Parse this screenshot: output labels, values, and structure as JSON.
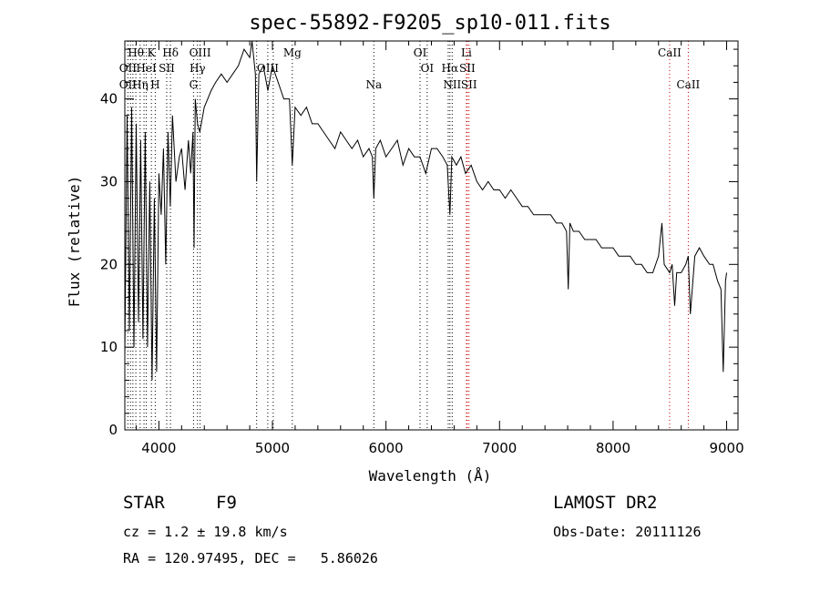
{
  "chart_data": {
    "type": "line",
    "title": "spec-55892-F9205_sp10-011.fits",
    "xlabel": "Wavelength (Å)",
    "ylabel": "Flux (relative)",
    "xlim": [
      3700,
      9100
    ],
    "ylim": [
      0,
      47
    ],
    "xticks": [
      "4000",
      "5000",
      "6000",
      "7000",
      "8000",
      "9000"
    ],
    "yticks": [
      "0",
      "10",
      "20",
      "30",
      "40"
    ],
    "series": [
      {
        "x": [
          3700,
          3720,
          3740,
          3760,
          3780,
          3800,
          3820,
          3840,
          3860,
          3880,
          3900,
          3920,
          3940,
          3960,
          3980,
          4000,
          4020,
          4040,
          4060,
          4080,
          4100,
          4120,
          4150,
          4180,
          4200,
          4230,
          4260,
          4280,
          4300,
          4310,
          4320,
          4340,
          4360,
          4400,
          4430,
          4460,
          4500,
          4550,
          4600,
          4650,
          4700,
          4750,
          4800,
          4820,
          4850,
          4861,
          4880,
          4920,
          4960,
          5000,
          5050,
          5100,
          5150,
          5175,
          5200,
          5250,
          5300,
          5350,
          5400,
          5450,
          5500,
          5550,
          5600,
          5650,
          5700,
          5750,
          5800,
          5850,
          5880,
          5893,
          5910,
          5950,
          6000,
          6050,
          6100,
          6150,
          6200,
          6250,
          6300,
          6350,
          6400,
          6450,
          6500,
          6540,
          6563,
          6580,
          6620,
          6660,
          6700,
          6750,
          6800,
          6850,
          6900,
          6950,
          7000,
          7050,
          7100,
          7150,
          7200,
          7250,
          7300,
          7350,
          7400,
          7450,
          7500,
          7550,
          7590,
          7605,
          7620,
          7650,
          7700,
          7750,
          7800,
          7850,
          7900,
          7950,
          8000,
          8050,
          8100,
          8150,
          8200,
          8250,
          8300,
          8350,
          8400,
          8430,
          8450,
          8498,
          8520,
          8542,
          8560,
          8600,
          8640,
          8662,
          8680,
          8720,
          8760,
          8800,
          8850,
          8880,
          8900,
          8920,
          8950,
          8970,
          8990,
          9000
        ],
        "y": [
          9,
          38,
          12,
          39,
          10,
          37,
          13,
          35,
          11,
          36,
          10,
          30,
          6,
          28,
          7,
          31,
          26,
          34,
          20,
          36,
          27,
          38,
          30,
          33,
          34,
          29,
          35,
          31,
          36,
          22,
          40,
          37,
          36,
          39,
          40,
          41,
          42,
          43,
          42,
          43,
          44,
          46,
          45,
          47,
          43,
          30,
          43,
          44,
          41,
          44,
          42,
          40,
          40,
          32,
          39,
          38,
          39,
          37,
          37,
          36,
          35,
          34,
          36,
          35,
          34,
          35,
          33,
          34,
          33,
          28,
          34,
          35,
          33,
          34,
          35,
          32,
          34,
          33,
          33,
          31,
          34,
          34,
          33,
          32,
          26,
          33,
          32,
          33,
          31,
          32,
          30,
          29,
          30,
          29,
          29,
          28,
          29,
          28,
          27,
          27,
          26,
          26,
          26,
          26,
          25,
          25,
          24,
          17,
          25,
          24,
          24,
          23,
          23,
          23,
          22,
          22,
          22,
          21,
          21,
          21,
          20,
          20,
          19,
          19,
          21,
          25,
          20,
          19,
          20,
          15,
          19,
          19,
          20,
          21,
          14,
          21,
          22,
          21,
          20,
          20,
          19,
          18,
          17,
          7,
          18,
          19
        ]
      }
    ],
    "line_labels": [
      {
        "text": "Hθ",
        "x": 3797,
        "row": 1,
        "color": "#000000"
      },
      {
        "text": "K",
        "x": 3934,
        "row": 1,
        "color": "#000000"
      },
      {
        "text": "Hδ",
        "x": 4102,
        "row": 1,
        "color": "#000000"
      },
      {
        "text": "OIII",
        "x": 4363,
        "row": 1,
        "color": "#000000"
      },
      {
        "text": "Mg",
        "x": 5175,
        "row": 1,
        "color": "#000000"
      },
      {
        "text": "OI",
        "x": 6300,
        "row": 1,
        "color": "#000000"
      },
      {
        "text": "Li",
        "x": 6708,
        "row": 1,
        "color": "#cc0000"
      },
      {
        "text": "CaII",
        "x": 8498,
        "row": 1,
        "color": "#cc0000"
      },
      {
        "text": "OII",
        "x": 3727,
        "row": 2,
        "color": "#000000"
      },
      {
        "text": "HeI",
        "x": 3889,
        "row": 2,
        "color": "#000000"
      },
      {
        "text": "SII",
        "x": 4069,
        "row": 2,
        "color": "#000000"
      },
      {
        "text": "Hγ",
        "x": 4340,
        "row": 2,
        "color": "#000000"
      },
      {
        "text": "OIII",
        "x": 4959,
        "row": 2,
        "color": "#000000"
      },
      {
        "text": "OI",
        "x": 6363,
        "row": 2,
        "color": "#000000"
      },
      {
        "text": "Hα",
        "x": 6563,
        "row": 2,
        "color": "#000000"
      },
      {
        "text": "SII",
        "x": 6716,
        "row": 2,
        "color": "#cc0000"
      },
      {
        "text": "OII",
        "x": 3727,
        "row": 3,
        "color": "#000000"
      },
      {
        "text": "Hη",
        "x": 3835,
        "row": 3,
        "color": "#000000"
      },
      {
        "text": "H",
        "x": 3968,
        "row": 3,
        "color": "#000000"
      },
      {
        "text": "G",
        "x": 4305,
        "row": 3,
        "color": "#000000"
      },
      {
        "text": "Na",
        "x": 5893,
        "row": 3,
        "color": "#000000"
      },
      {
        "text": "NII",
        "x": 6583,
        "row": 3,
        "color": "#000000"
      },
      {
        "text": "SII",
        "x": 6731,
        "row": 3,
        "color": "#cc0000"
      },
      {
        "text": "CaII",
        "x": 8662,
        "row": 3,
        "color": "#cc0000"
      }
    ],
    "line_markers": [
      {
        "x": 3727,
        "color": "#000000"
      },
      {
        "x": 3750,
        "color": "#000000"
      },
      {
        "x": 3771,
        "color": "#000000"
      },
      {
        "x": 3797,
        "color": "#000000"
      },
      {
        "x": 3835,
        "color": "#000000"
      },
      {
        "x": 3869,
        "color": "#000000"
      },
      {
        "x": 3889,
        "color": "#000000"
      },
      {
        "x": 3934,
        "color": "#000000"
      },
      {
        "x": 3968,
        "color": "#000000"
      },
      {
        "x": 4069,
        "color": "#000000"
      },
      {
        "x": 4102,
        "color": "#000000"
      },
      {
        "x": 4305,
        "color": "#000000"
      },
      {
        "x": 4340,
        "color": "#000000"
      },
      {
        "x": 4363,
        "color": "#000000"
      },
      {
        "x": 4861,
        "color": "#000000"
      },
      {
        "x": 4959,
        "color": "#000000"
      },
      {
        "x": 5007,
        "color": "#000000"
      },
      {
        "x": 5175,
        "color": "#000000"
      },
      {
        "x": 5893,
        "color": "#000000"
      },
      {
        "x": 6300,
        "color": "#000000"
      },
      {
        "x": 6363,
        "color": "#000000"
      },
      {
        "x": 6548,
        "color": "#000000"
      },
      {
        "x": 6563,
        "color": "#000000"
      },
      {
        "x": 6583,
        "color": "#000000"
      },
      {
        "x": 6708,
        "color": "#cc0000"
      },
      {
        "x": 6716,
        "color": "#cc0000"
      },
      {
        "x": 6731,
        "color": "#cc0000"
      },
      {
        "x": 8498,
        "color": "#cc0000"
      },
      {
        "x": 8662,
        "color": "#cc0000"
      }
    ]
  },
  "info": {
    "class": "STAR",
    "subclass": "F9",
    "survey": "LAMOST DR2",
    "cz": "cz = 1.2 ± 19.8 km/s",
    "obs_date": "Obs-Date: 20111126",
    "coords": "RA = 120.97495, DEC =   5.86026"
  }
}
